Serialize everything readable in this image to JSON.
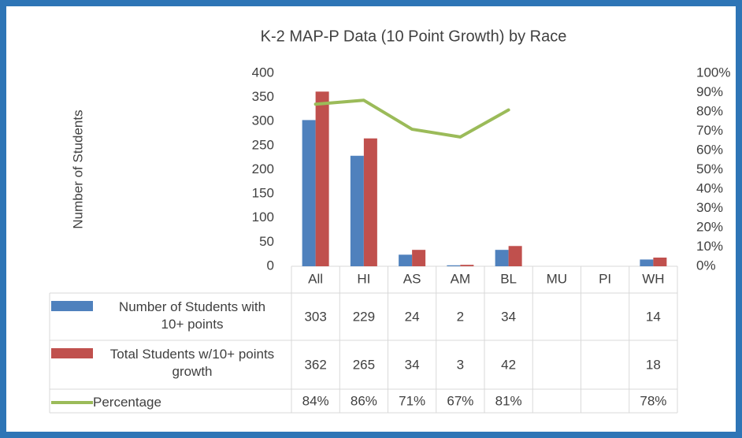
{
  "chart_data": {
    "type": "bar",
    "title": "K-2 MAP-P Data (10 Point Growth) by Race",
    "y_axis_label": "Number of Students",
    "categories": [
      "All",
      "HI",
      "AS",
      "AM",
      "BL",
      "MU",
      "PI",
      "WH"
    ],
    "series": [
      {
        "name": "Number of Students with 10+ points",
        "color": "#4f81bd",
        "values": [
          303,
          229,
          24,
          2,
          34,
          null,
          null,
          14
        ]
      },
      {
        "name": "Total Students w/10+ points growth",
        "color": "#c0504d",
        "values": [
          362,
          265,
          34,
          3,
          42,
          null,
          null,
          18
        ]
      },
      {
        "name": "Percentage",
        "color": "#9bbb59",
        "type": "line",
        "axis": "y2",
        "values": [
          84,
          86,
          71,
          67,
          81,
          null,
          null,
          78
        ],
        "value_labels": [
          "84%",
          "86%",
          "71%",
          "67%",
          "81%",
          null,
          null,
          "78%"
        ]
      }
    ],
    "ylim": [
      0,
      400
    ],
    "yticks": [
      0,
      50,
      100,
      150,
      200,
      250,
      300,
      350,
      400
    ],
    "y2lim": [
      0,
      100
    ],
    "y2ticks": [
      {
        "value": 0,
        "label": "0%"
      },
      {
        "value": 10,
        "label": "10%"
      },
      {
        "value": 20,
        "label": "20%"
      },
      {
        "value": 30,
        "label": "30%"
      },
      {
        "value": 40,
        "label": "40%"
      },
      {
        "value": 50,
        "label": "50%"
      },
      {
        "value": 60,
        "label": "60%"
      },
      {
        "value": 70,
        "label": "70%"
      },
      {
        "value": 80,
        "label": "80%"
      },
      {
        "value": 90,
        "label": "90%"
      },
      {
        "value": 100,
        "label": "100%"
      }
    ],
    "grid": false,
    "data_table": true
  }
}
